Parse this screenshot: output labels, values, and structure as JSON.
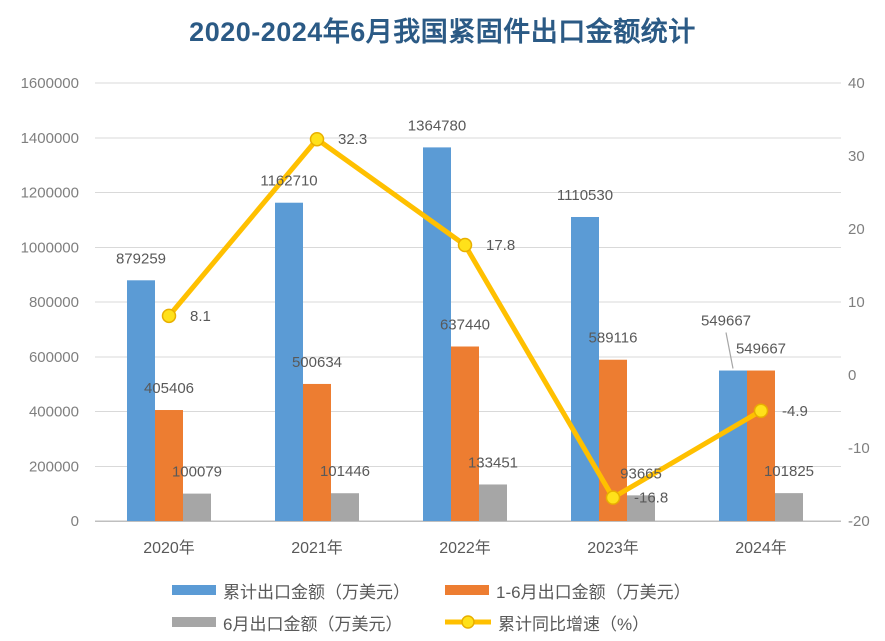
{
  "title": "2020-2024年6月我国紧固件出口金额统计",
  "chart_data": {
    "type": "bar",
    "title": "2020-2024年6月我国紧固件出口金额统计",
    "categories": [
      "2020年",
      "2021年",
      "2022年",
      "2023年",
      "2024年"
    ],
    "series": [
      {
        "key": "cumulative-export",
        "name": "累计出口金额（万美元）",
        "type": "bar",
        "axis": "left",
        "color": "#5B9BD5",
        "values": [
          879259,
          1162710,
          1364780,
          1110530,
          549667
        ]
      },
      {
        "key": "jan-jun-export",
        "name": "1-6月出口金额（万美元）",
        "type": "bar",
        "axis": "left",
        "color": "#ED7D31",
        "values": [
          405406,
          500634,
          637440,
          589116,
          549667
        ]
      },
      {
        "key": "june-export",
        "name": "6月出口金额（万美元）",
        "type": "bar",
        "axis": "left",
        "color": "#A6A6A6",
        "values": [
          100079,
          101446,
          133451,
          93665,
          101825
        ]
      },
      {
        "key": "yoy-growth",
        "name": "累计同比增速（%）",
        "type": "line",
        "axis": "right",
        "color": "#FFC000",
        "marker_fill": "#FFE11A",
        "marker_stroke": "#E8AF00",
        "values": [
          8.1,
          32.3,
          17.8,
          -16.8,
          -4.9
        ]
      }
    ],
    "left_axis": {
      "min": 0,
      "max": 1600000,
      "step": 200000,
      "ticks": [
        "0",
        "200000",
        "400000",
        "600000",
        "800000",
        "1000000",
        "1200000",
        "1400000",
        "1600000"
      ]
    },
    "right_axis": {
      "min": -20,
      "max": 40,
      "step": 10,
      "ticks": [
        "-20",
        "-10",
        "0",
        "10",
        "20",
        "30",
        "40"
      ]
    },
    "grid": true,
    "legend_position": "bottom",
    "label_callout": {
      "series_index": 0,
      "category_index": 4,
      "dx": -7,
      "dy": -28
    }
  },
  "colors": {
    "title": "#2B5A85",
    "axis_tick": "#7F7F7F",
    "x_label": "#595959",
    "data_label": "#595959",
    "gridline": "#D9D9D9",
    "baseline": "#BFBFBF",
    "legend_text": "#595959",
    "callout_line": "#A6A6A6",
    "background": "#FFFFFF"
  }
}
